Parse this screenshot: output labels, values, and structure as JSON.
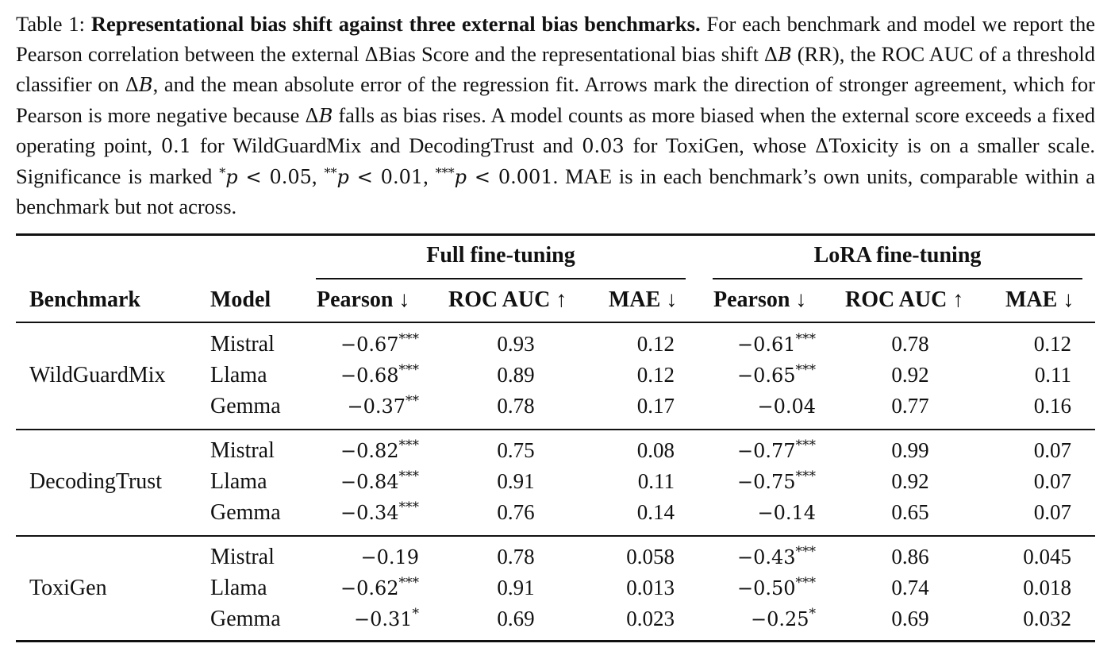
{
  "caption": {
    "label": "Table 1:",
    "title": "Representational bias shift against three external bias benchmarks.",
    "t1": " For each benchmark and model we report the Pearson correlation between the external ",
    "delta": "Δ",
    "t2": "Bias Score and the representational bias shift ",
    "B": "B",
    "t3": " (RR), the ROC AUC of a threshold classifier on ",
    "t4": ", and the mean absolute error of the regression fit. Arrows mark the direction of stronger agreement, which for Pearson is more negative because ",
    "t5": " falls as bias rises. A model counts as more biased when the external score exceeds a fixed operating point, ",
    "v1": "0.1",
    "t6": " for WildGuardMix and DecodingTrust and ",
    "v2": "0.03",
    "t7": " for ToxiGen, whose ",
    "t8": "Toxicity is on a smaller scale. Significance is marked ",
    "s1": "*",
    "p": "p",
    "lt1": " < 0.05",
    "comma": ", ",
    "s2": "**",
    "lt2": " < 0.01",
    "s3": "***",
    "lt3": " < 0.001",
    "t9": ". MAE is in each benchmark’s own units, comparable within a benchmark but not across."
  },
  "headers": {
    "group_full": "Full fine-tuning",
    "group_lora": "LoRA fine-tuning",
    "benchmark": "Benchmark",
    "model": "Model",
    "pearson": "Pearson ↓",
    "rocauc": "ROC AUC ↑",
    "mae": "MAE ↓"
  },
  "groups": [
    {
      "benchmark": "WildGuardMix",
      "rows": [
        {
          "model": "Mistral",
          "full_pearson": "−0.67",
          "full_sig": "***",
          "full_auc": "0.93",
          "full_mae": "0.12",
          "lora_pearson": "−0.61",
          "lora_sig": "***",
          "lora_auc": "0.78",
          "lora_mae": "0.12"
        },
        {
          "model": "Llama",
          "full_pearson": "−0.68",
          "full_sig": "***",
          "full_auc": "0.89",
          "full_mae": "0.12",
          "lora_pearson": "−0.65",
          "lora_sig": "***",
          "lora_auc": "0.92",
          "lora_mae": "0.11"
        },
        {
          "model": "Gemma",
          "full_pearson": "−0.37",
          "full_sig": "**",
          "full_auc": "0.78",
          "full_mae": "0.17",
          "lora_pearson": "−0.04",
          "lora_sig": "",
          "lora_auc": "0.77",
          "lora_mae": "0.16"
        }
      ]
    },
    {
      "benchmark": "DecodingTrust",
      "rows": [
        {
          "model": "Mistral",
          "full_pearson": "−0.82",
          "full_sig": "***",
          "full_auc": "0.75",
          "full_mae": "0.08",
          "lora_pearson": "−0.77",
          "lora_sig": "***",
          "lora_auc": "0.99",
          "lora_mae": "0.07"
        },
        {
          "model": "Llama",
          "full_pearson": "−0.84",
          "full_sig": "***",
          "full_auc": "0.91",
          "full_mae": "0.11",
          "lora_pearson": "−0.75",
          "lora_sig": "***",
          "lora_auc": "0.92",
          "lora_mae": "0.07"
        },
        {
          "model": "Gemma",
          "full_pearson": "−0.34",
          "full_sig": "***",
          "full_auc": "0.76",
          "full_mae": "0.14",
          "lora_pearson": "−0.14",
          "lora_sig": "",
          "lora_auc": "0.65",
          "lora_mae": "0.07"
        }
      ]
    },
    {
      "benchmark": "ToxiGen",
      "rows": [
        {
          "model": "Mistral",
          "full_pearson": "−0.19",
          "full_sig": "",
          "full_auc": "0.78",
          "full_mae": "0.058",
          "lora_pearson": "−0.43",
          "lora_sig": "***",
          "lora_auc": "0.86",
          "lora_mae": "0.045"
        },
        {
          "model": "Llama",
          "full_pearson": "−0.62",
          "full_sig": "***",
          "full_auc": "0.91",
          "full_mae": "0.013",
          "lora_pearson": "−0.50",
          "lora_sig": "***",
          "lora_auc": "0.74",
          "lora_mae": "0.018"
        },
        {
          "model": "Gemma",
          "full_pearson": "−0.31",
          "full_sig": "*",
          "full_auc": "0.69",
          "full_mae": "0.023",
          "lora_pearson": "−0.25",
          "lora_sig": "*",
          "lora_auc": "0.69",
          "lora_mae": "0.032"
        }
      ]
    }
  ]
}
